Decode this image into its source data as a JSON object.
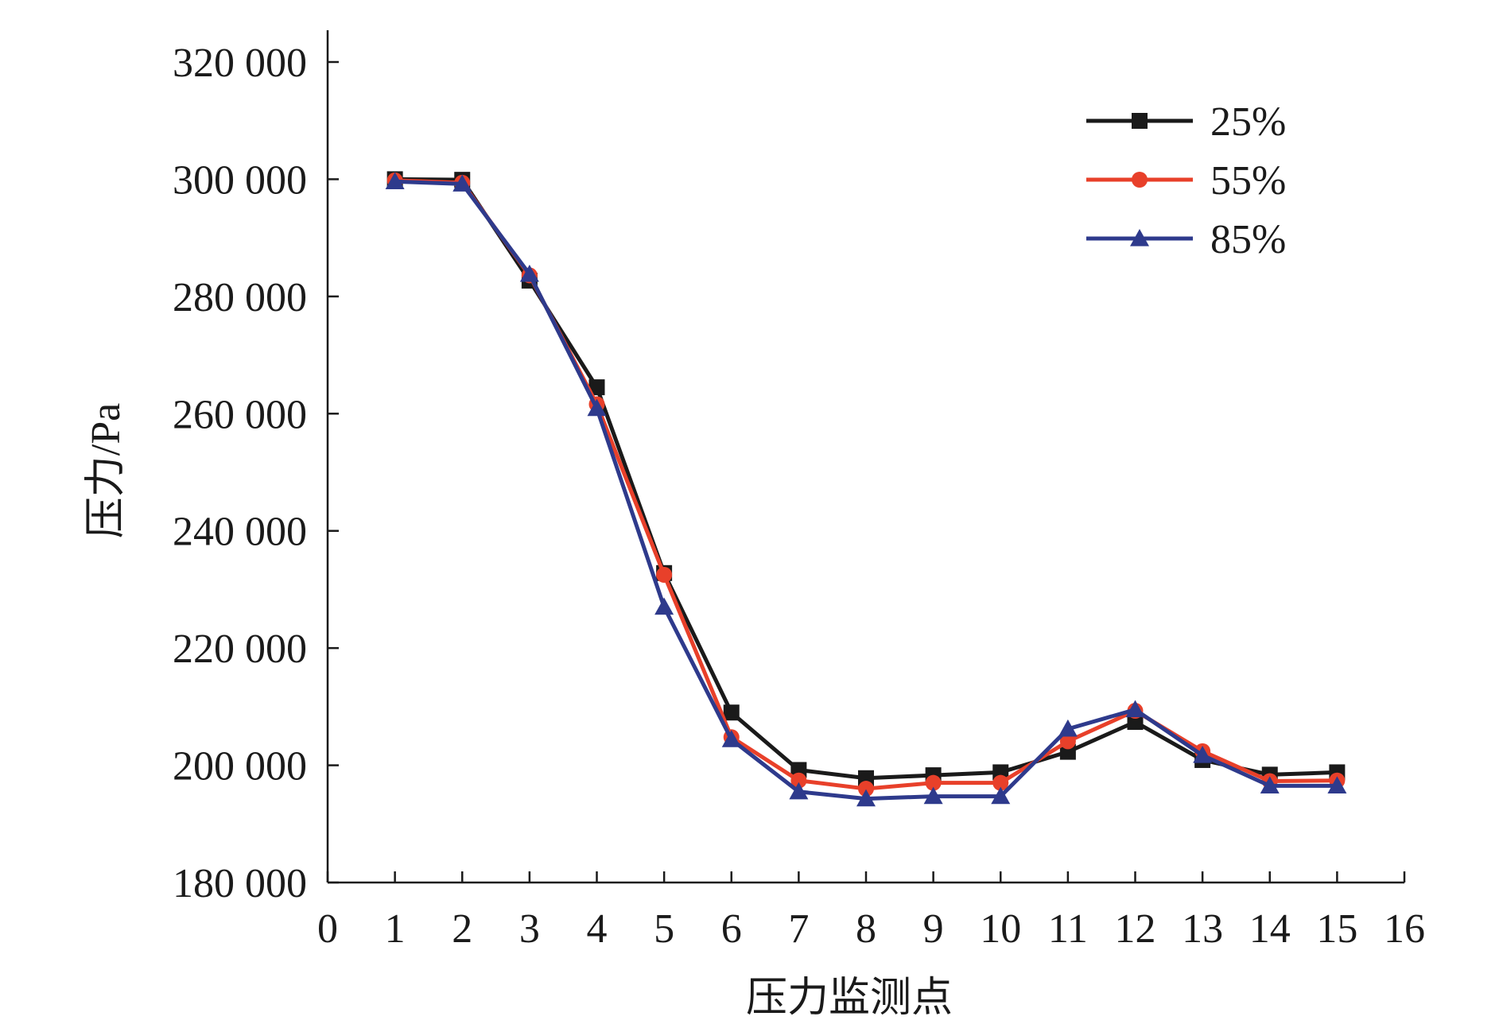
{
  "chart_data": {
    "type": "line",
    "xlabel": "压力监测点",
    "ylabel": "压力/Pa",
    "xlim": [
      0,
      16
    ],
    "ylim": [
      180000,
      320000
    ],
    "x_ticks": [
      "0",
      "1",
      "2",
      "3",
      "4",
      "5",
      "6",
      "7",
      "8",
      "9",
      "10",
      "11",
      "12",
      "13",
      "14",
      "15",
      "16"
    ],
    "y_ticks": [
      "180 000",
      "200 000",
      "220 000",
      "240 000",
      "260 000",
      "280 000",
      "300 000",
      "320 000"
    ],
    "x": [
      1,
      2,
      3,
      4,
      5,
      6,
      7,
      8,
      9,
      10,
      11,
      12,
      13,
      14,
      15
    ],
    "grid": false,
    "legend_position": "top-right",
    "series": [
      {
        "name": "25%",
        "color": "#1a1a1a",
        "marker": "square",
        "values": [
          300000,
          299900,
          282700,
          264500,
          232800,
          209000,
          199200,
          197800,
          198300,
          198800,
          202300,
          207400,
          200900,
          198400,
          198800
        ]
      },
      {
        "name": "55%",
        "color": "#e8402a",
        "marker": "circle",
        "values": [
          299800,
          299400,
          283600,
          261600,
          232500,
          204800,
          197400,
          196000,
          197000,
          197000,
          204100,
          209300,
          202400,
          197300,
          197400
        ]
      },
      {
        "name": "85%",
        "color": "#2e3a8c",
        "marker": "triangle",
        "values": [
          299600,
          299200,
          283800,
          260900,
          227000,
          204400,
          195500,
          194300,
          194700,
          194700,
          206200,
          209500,
          201700,
          196500,
          196500
        ]
      }
    ]
  }
}
